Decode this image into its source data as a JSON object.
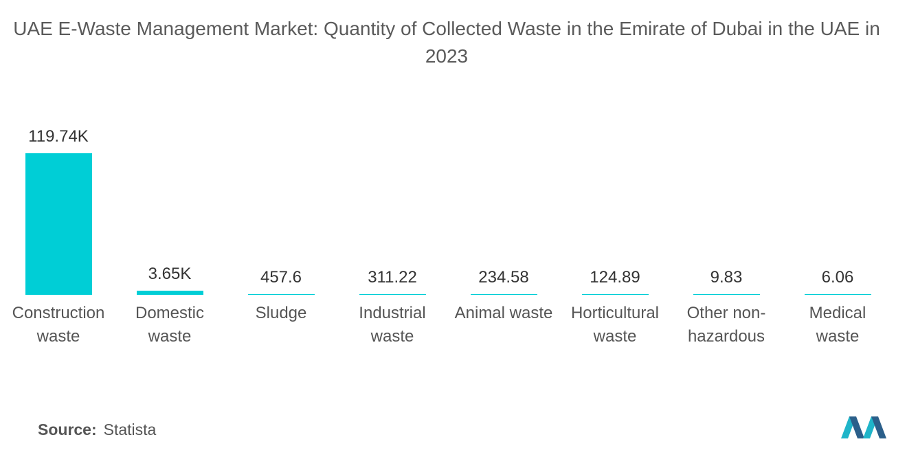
{
  "chart_data": {
    "type": "bar",
    "title": "UAE E-Waste Management Market: Quantity of Collected Waste in the Emirate of Dubai in the UAE in 2023",
    "categories": [
      "Construction waste",
      "Domestic waste",
      "Sludge",
      "Industrial waste",
      "Animal waste",
      "Horticultural waste",
      "Other non-hazardous",
      "Medical waste"
    ],
    "values": [
      119740,
      3650,
      457.6,
      311.22,
      234.58,
      124.89,
      9.83,
      6.06
    ],
    "value_labels": [
      "119.74K",
      "3.65K",
      "457.6",
      "311.22",
      "234.58",
      "124.89",
      "9.83",
      "6.06"
    ],
    "color": "#00ced6"
  },
  "source": {
    "label": "Source:",
    "name": "Statista"
  }
}
